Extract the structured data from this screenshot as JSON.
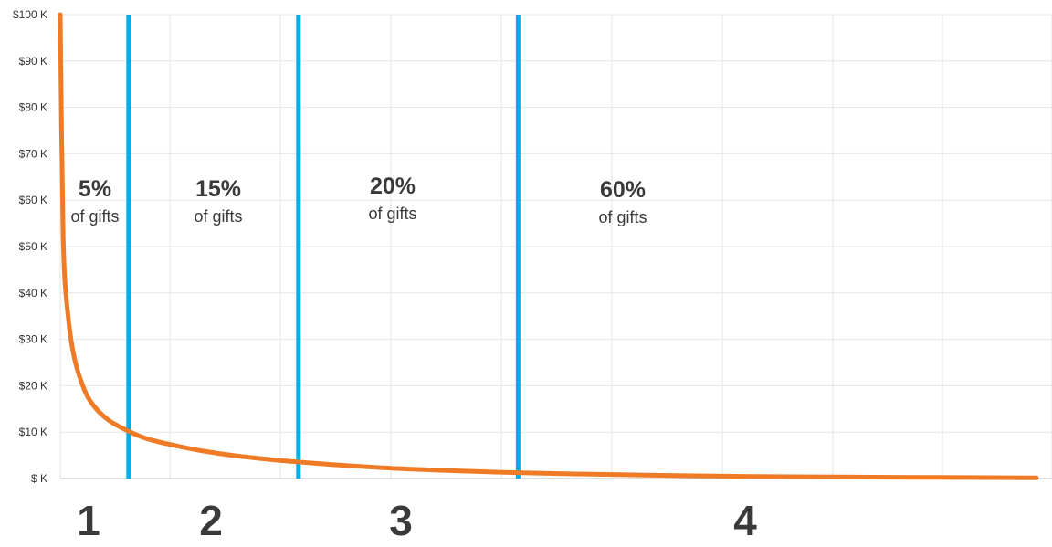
{
  "chart_data": {
    "type": "line",
    "title": "",
    "xlabel": "",
    "ylabel": "",
    "ylim": [
      0,
      100000
    ],
    "xlim": [
      0,
      1
    ],
    "grid": true,
    "y_ticks": [
      {
        "value": 0,
        "label": "$ K"
      },
      {
        "value": 10000,
        "label": "$10 K"
      },
      {
        "value": 20000,
        "label": "$20 K"
      },
      {
        "value": 30000,
        "label": "$30 K"
      },
      {
        "value": 40000,
        "label": "$40 K"
      },
      {
        "value": 50000,
        "label": "$50 K"
      },
      {
        "value": 60000,
        "label": "$60 K"
      },
      {
        "value": 70000,
        "label": "$70 K"
      },
      {
        "value": 80000,
        "label": "$80 K"
      },
      {
        "value": 90000,
        "label": "$90 K"
      },
      {
        "value": 100000,
        "label": "$100 K"
      }
    ],
    "series": [
      {
        "color": "#f07b26",
        "x": [
          0.0,
          0.003,
          0.008,
          0.015,
          0.025,
          0.035,
          0.05,
          0.07,
          0.09,
          0.12,
          0.15,
          0.18,
          0.22,
          0.26,
          0.3,
          0.35,
          0.4,
          0.45,
          0.5,
          0.55,
          0.6,
          0.65,
          0.7,
          0.75,
          0.8,
          0.85,
          0.9,
          0.95,
          1.0
        ],
        "values": [
          100000,
          52000,
          35000,
          25500,
          19000,
          15500,
          12500,
          10200,
          8500,
          7000,
          5800,
          4900,
          4000,
          3300,
          2700,
          2100,
          1700,
          1350,
          1100,
          900,
          750,
          600,
          480,
          400,
          330,
          280,
          230,
          200,
          150
        ]
      }
    ],
    "dividers": [
      {
        "color": "#00aee9",
        "x": 0.07
      },
      {
        "color": "#00aee9",
        "x": 0.244
      },
      {
        "color": "#00aee9",
        "x": 0.469
      }
    ],
    "segments": [
      {
        "number": "1",
        "percent": "5%",
        "caption": "of gifts"
      },
      {
        "number": "2",
        "percent": "15%",
        "caption": "of gifts"
      },
      {
        "number": "3",
        "percent": "20%",
        "caption": "of gifts"
      },
      {
        "number": "4",
        "percent": "60%",
        "caption": "of gifts"
      }
    ]
  }
}
